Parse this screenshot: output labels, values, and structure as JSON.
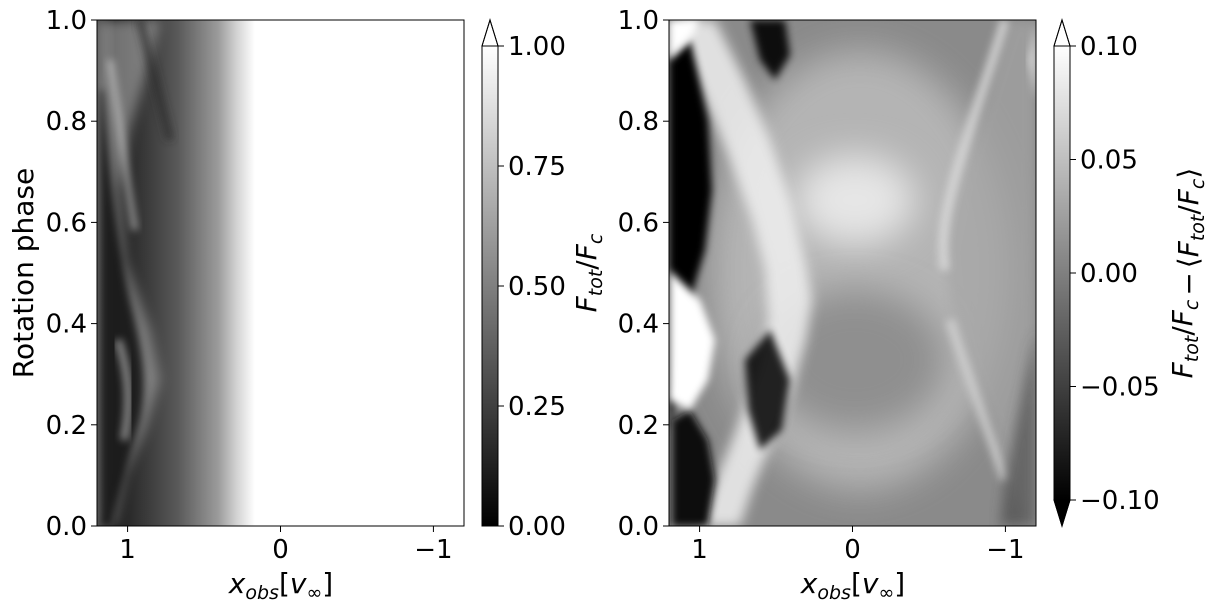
{
  "colors": {
    "black": "#000000",
    "white": "#ffffff",
    "frame": "#000000"
  },
  "chart_data": [
    {
      "type": "heatmap",
      "title": "",
      "xlabel": "x_obs[v_∞]",
      "ylabel": "Rotation phase",
      "xlim": [
        1.2,
        -1.2
      ],
      "ylim": [
        0.0,
        1.0
      ],
      "x_ticks": [
        {
          "value": 1,
          "label": "1"
        },
        {
          "value": 0,
          "label": "0"
        },
        {
          "value": -1,
          "label": "−1"
        }
      ],
      "y_ticks": [
        {
          "value": 0.0,
          "label": "0.0"
        },
        {
          "value": 0.2,
          "label": "0.2"
        },
        {
          "value": 0.4,
          "label": "0.4"
        },
        {
          "value": 0.6,
          "label": "0.6"
        },
        {
          "value": 0.8,
          "label": "0.8"
        },
        {
          "value": 1.0,
          "label": "1.0"
        }
      ],
      "colormap": "gray",
      "colorbar": {
        "label": "F_tot/F_c",
        "range": [
          0.0,
          1.0
        ],
        "extend": "max",
        "ticks": [
          {
            "value": 0.0,
            "label": "0.00"
          },
          {
            "value": 0.25,
            "label": "0.25"
          },
          {
            "value": 0.5,
            "label": "0.50"
          },
          {
            "value": 0.75,
            "label": "0.75"
          },
          {
            "value": 1.0,
            "label": "1.00"
          }
        ]
      },
      "grid": false
    },
    {
      "type": "heatmap",
      "title": "",
      "xlabel": "x_obs[v_∞]",
      "ylabel": "",
      "xlim": [
        1.2,
        -1.2
      ],
      "ylim": [
        0.0,
        1.0
      ],
      "x_ticks": [
        {
          "value": 1,
          "label": "1"
        },
        {
          "value": 0,
          "label": "0"
        },
        {
          "value": -1,
          "label": "−1"
        }
      ],
      "y_ticks": [
        {
          "value": 0.0,
          "label": "0.0"
        },
        {
          "value": 0.2,
          "label": "0.2"
        },
        {
          "value": 0.4,
          "label": "0.4"
        },
        {
          "value": 0.6,
          "label": "0.6"
        },
        {
          "value": 0.8,
          "label": "0.8"
        },
        {
          "value": 1.0,
          "label": "1.0"
        }
      ],
      "colormap": "gray",
      "colorbar": {
        "label": "F_tot/F_c − ⟨F_tot/F_c⟩",
        "range": [
          -0.1,
          0.1
        ],
        "extend": "both",
        "ticks": [
          {
            "value": -0.1,
            "label": "−0.10"
          },
          {
            "value": -0.05,
            "label": "−0.05"
          },
          {
            "value": 0.0,
            "label": "0.00"
          },
          {
            "value": 0.05,
            "label": "0.05"
          },
          {
            "value": 0.1,
            "label": "0.10"
          }
        ]
      },
      "grid": false
    }
  ]
}
